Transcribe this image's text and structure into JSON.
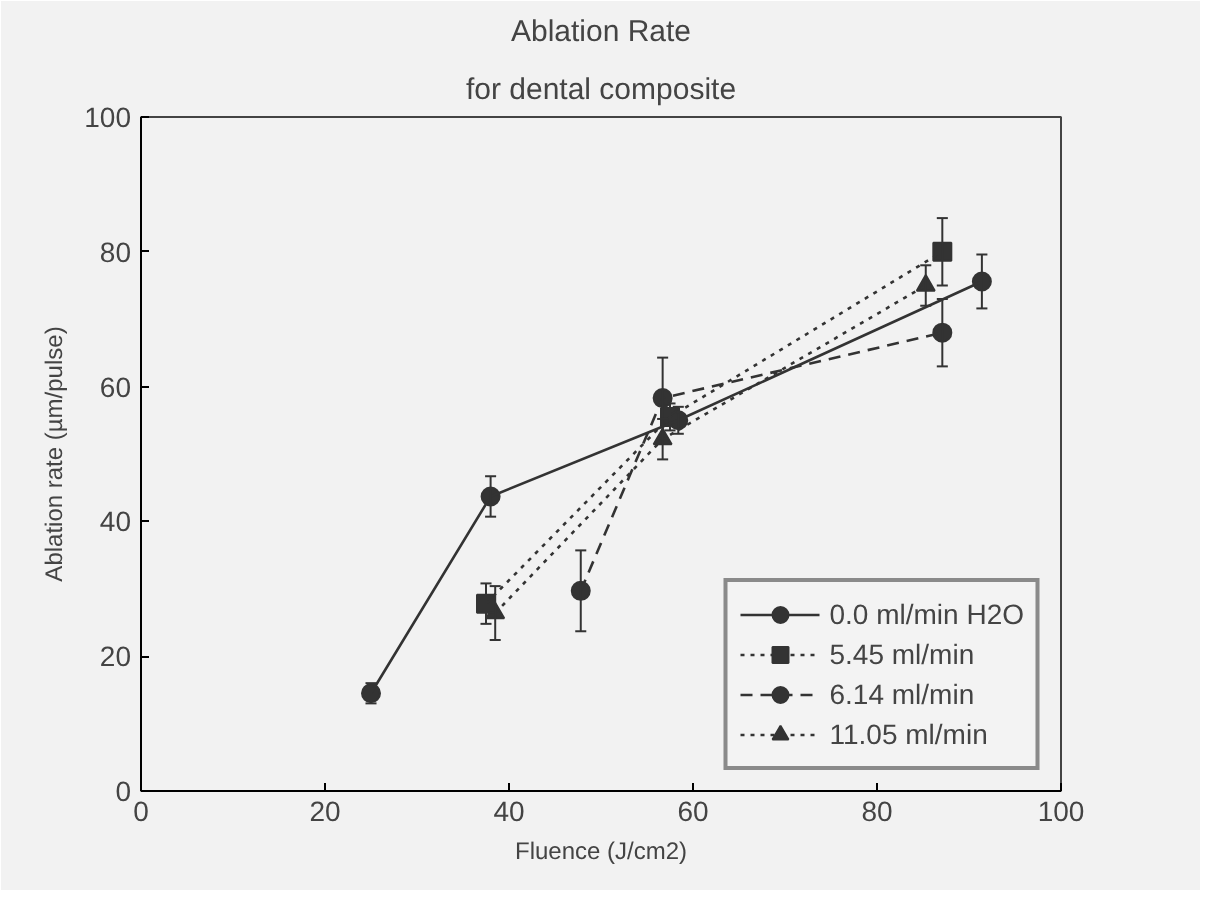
{
  "chart_data": {
    "type": "line",
    "title": "Ablation Rate",
    "subtitle": "for dental composite",
    "xlabel": "Fluence (J/cm2)",
    "ylabel": "Ablation rate (µm/pulse)",
    "xlim": [
      0,
      100
    ],
    "xticks": [
      0,
      20,
      40,
      60,
      80,
      100
    ],
    "ylim": [
      0,
      100
    ],
    "yticks": [
      0,
      20,
      40,
      60,
      80,
      100
    ],
    "grid": false,
    "legend": "bottom right",
    "series": [
      {
        "name": "0.0 ml/min H2O",
        "color": "#333333",
        "line_style": "solid",
        "marker": "circle",
        "x": [
          25,
          38,
          58.4,
          91.4
        ],
        "values": [
          14.5,
          43.7,
          55,
          75.6
        ],
        "errors": [
          1.5,
          3,
          2,
          4
        ]
      },
      {
        "name": "5.45 ml/min",
        "color": "#333333",
        "line_style": "dotted",
        "marker": "square",
        "x": [
          37.5,
          57.5,
          87.1
        ],
        "values": [
          27.8,
          55.5,
          80
        ],
        "errors": [
          3,
          2,
          5
        ]
      },
      {
        "name": "6.14 ml/min",
        "color": "#333333",
        "line_style": "dashed",
        "marker": "circle",
        "x": [
          47.8,
          56.7,
          87.1
        ],
        "values": [
          29.7,
          58.3,
          68
        ],
        "errors": [
          6,
          6,
          5
        ]
      },
      {
        "name": "11.05 ml/min",
        "color": "#333333",
        "line_style": "dotted",
        "marker": "triangle",
        "x": [
          38.5,
          56.7,
          85.3
        ],
        "values": [
          26.4,
          52.2,
          75
        ],
        "errors": [
          4,
          3,
          3
        ]
      }
    ]
  }
}
